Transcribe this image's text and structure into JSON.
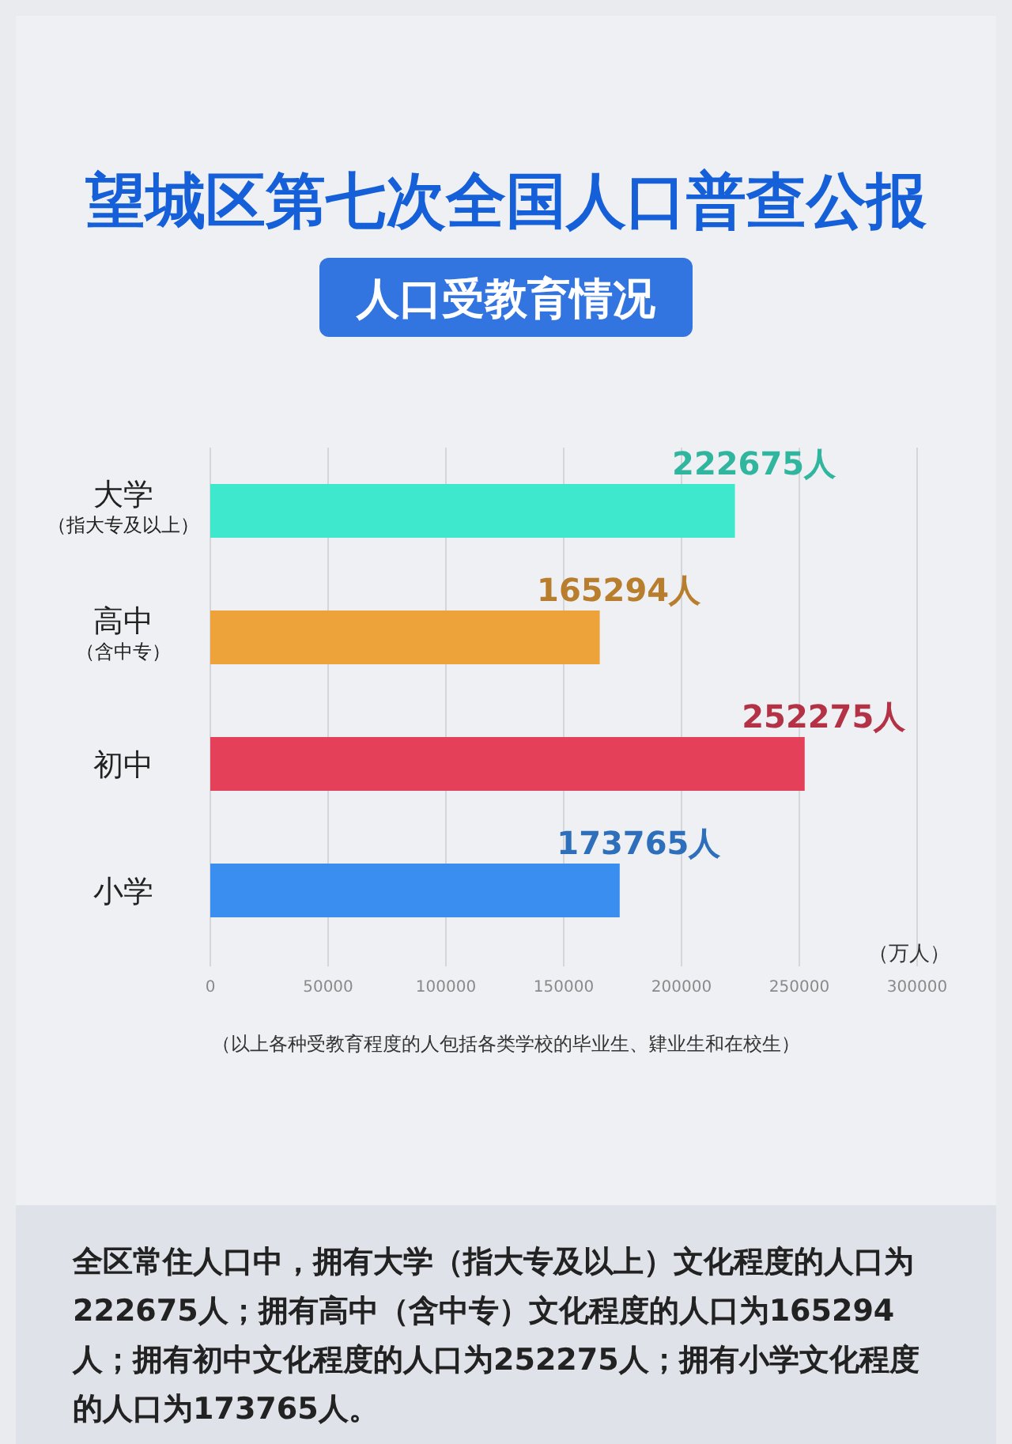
{
  "chart_data": {
    "type": "bar",
    "orientation": "horizontal",
    "title": "望城区第七次全国人口普查公报",
    "subtitle": "人口受教育情况",
    "xlabel": "（万人）",
    "categories": [
      "大学（指大专及以上）",
      "高中（含中专）",
      "初中",
      "小学"
    ],
    "values": [
      222675,
      165294,
      252275,
      173765
    ],
    "colors": [
      "#3de8cc",
      "#eda23a",
      "#e5405a",
      "#3a8ef0"
    ],
    "value_labels": [
      "222675人",
      "165294人",
      "252275人",
      "173765人"
    ],
    "xlim": [
      0,
      300000
    ],
    "xticks": [
      0,
      50000,
      100000,
      150000,
      200000,
      250000,
      300000
    ],
    "grid": "x",
    "annotations": [
      "（以上各种受教育程度的人包括各类学校的毕业生、肄业生和在校生）",
      "全区常住人口中，拥有大学（指大专及以上）文化程度的人口为222675人；拥有高中（含中专）文化程度的人口为165294人；拥有初中文化程度的人口为252275人；拥有小学文化程度的人口为173765人。"
    ]
  }
}
